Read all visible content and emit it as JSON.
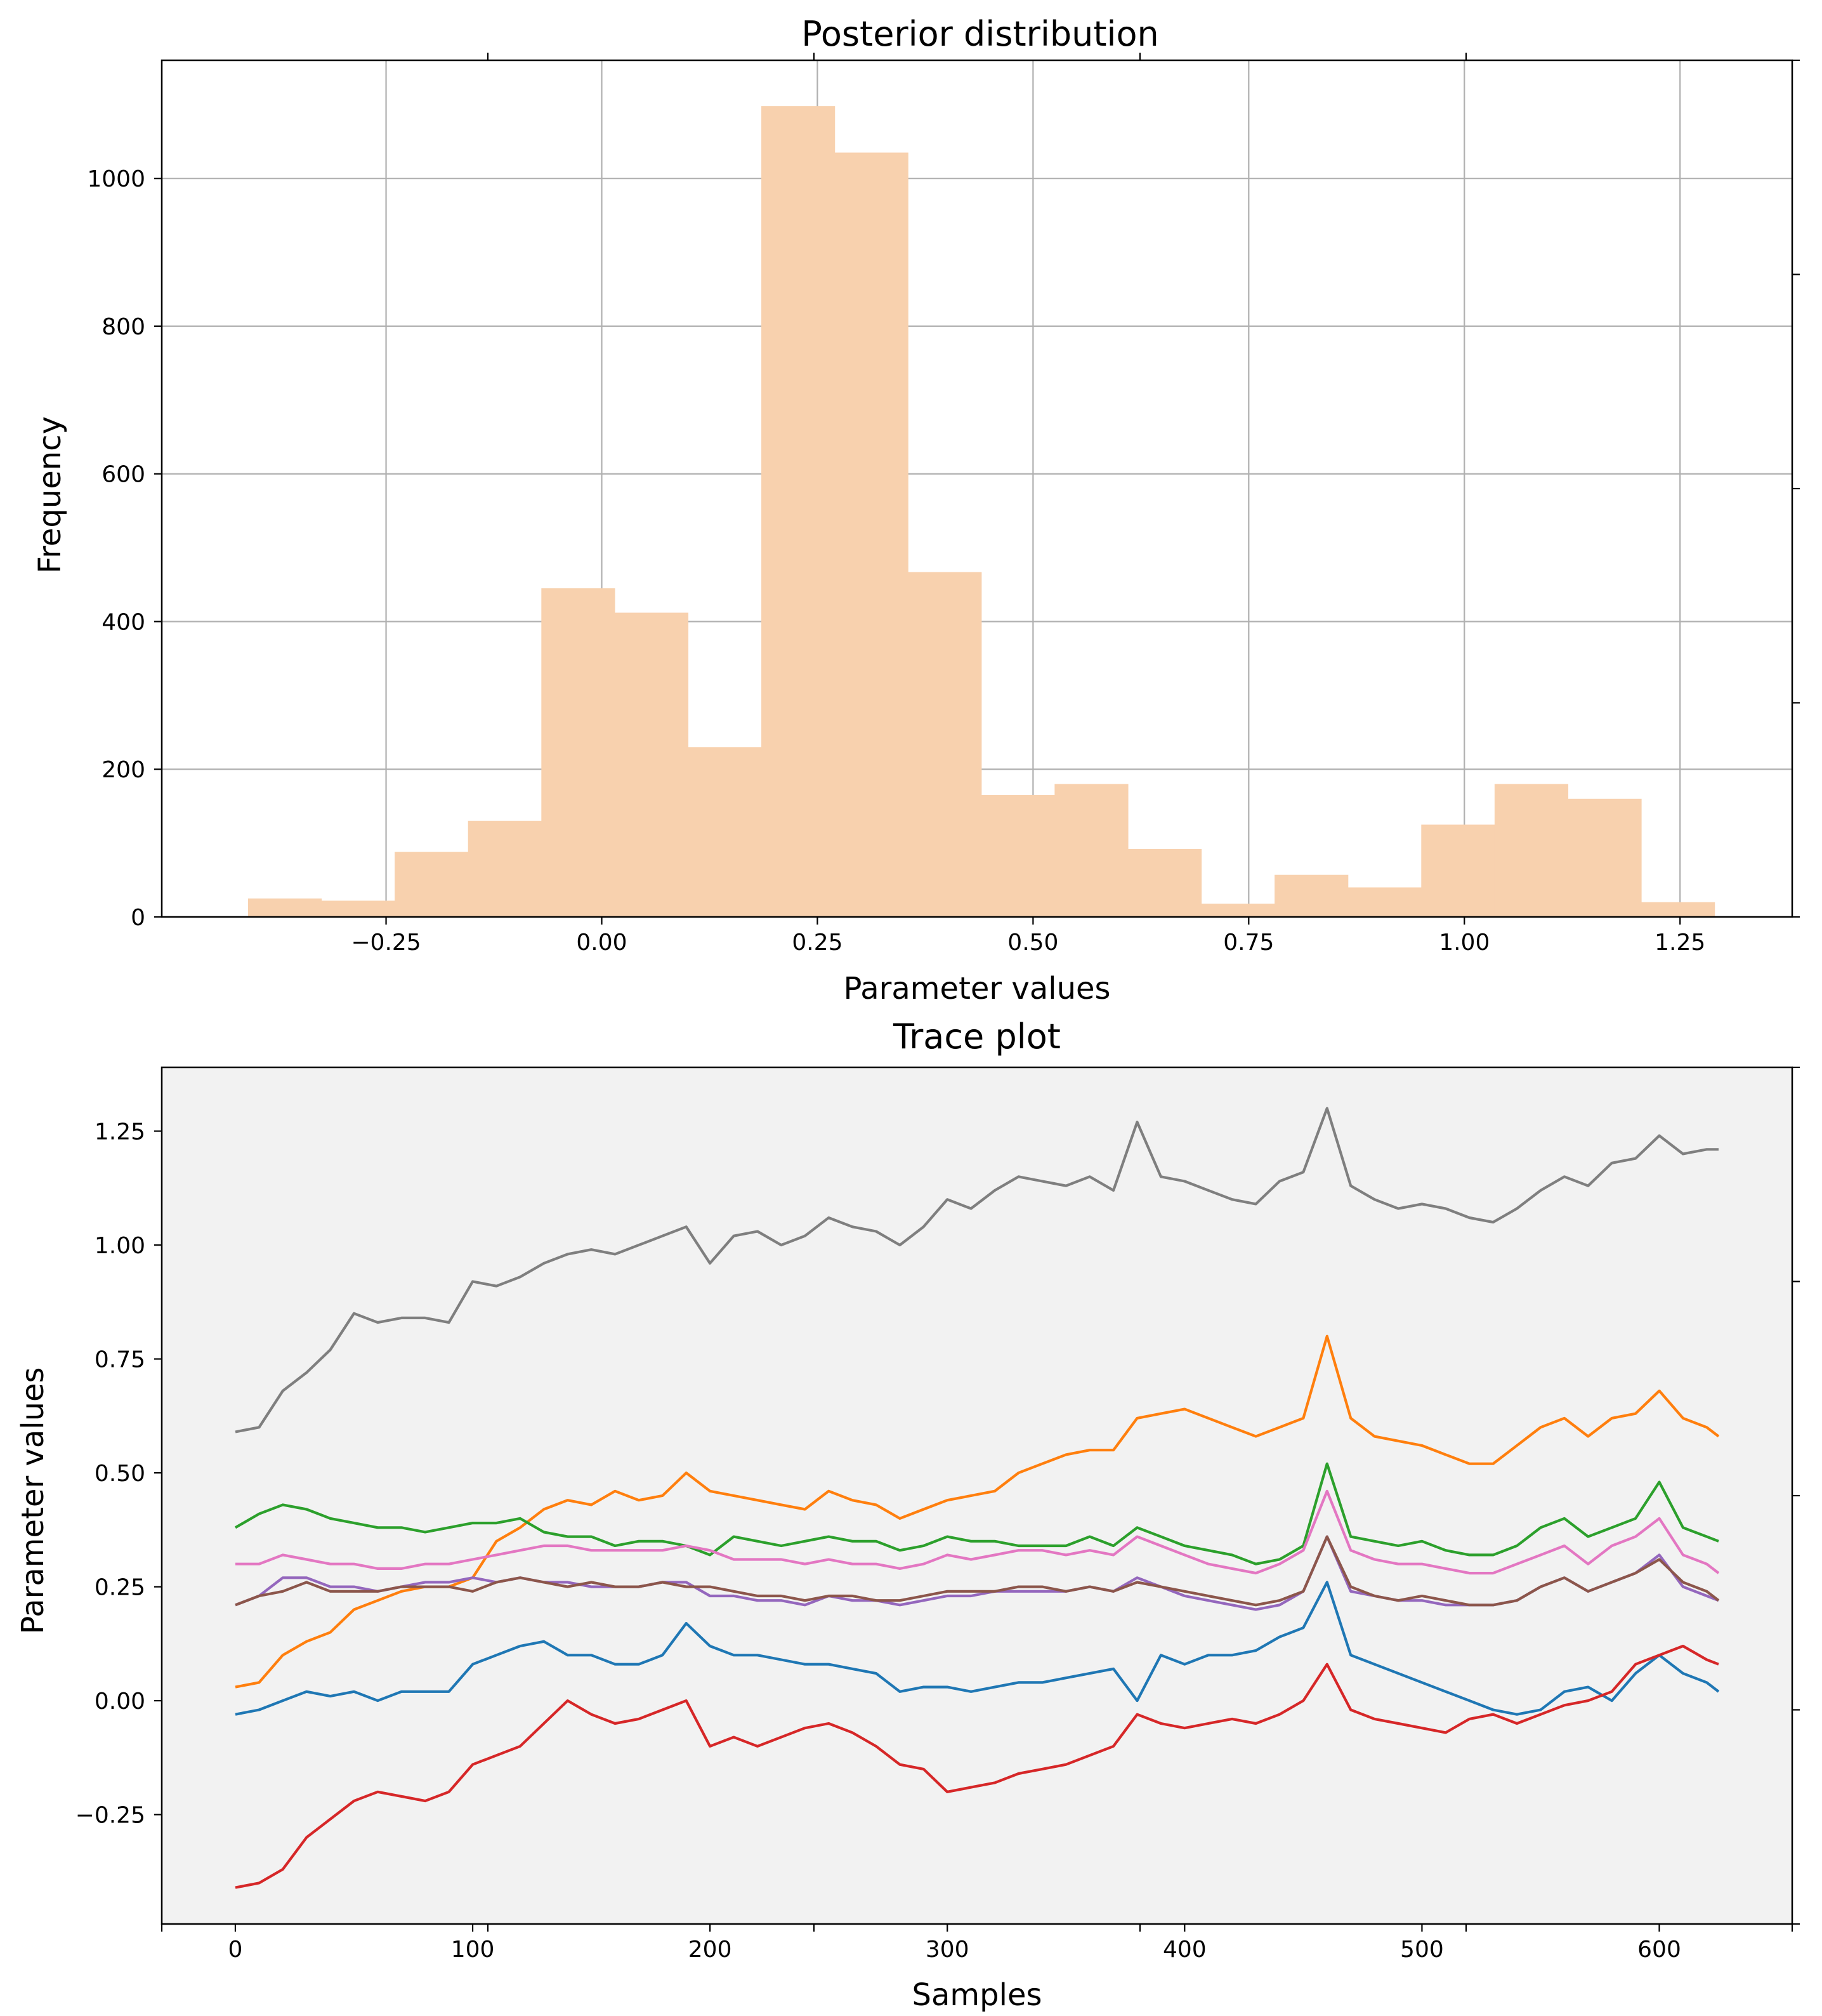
{
  "colors": {
    "hist_bar": "#f8d1ae",
    "grid": "#b0b0b0",
    "trace_background": "#f2f2f2",
    "axes": "#000000"
  },
  "chart_data": [
    {
      "type": "bar",
      "title": "Posterior distribution",
      "xlabel": "Parameter values",
      "ylabel": "Frequency",
      "grid": true,
      "xlim": [
        -0.51,
        1.38
      ],
      "ylim": [
        0,
        1160
      ],
      "x_ticks": [
        {
          "value": -0.25,
          "label": "−0.25"
        },
        {
          "value": 0.0,
          "label": "0.00"
        },
        {
          "value": 0.25,
          "label": "0.25"
        },
        {
          "value": 0.5,
          "label": "0.50"
        },
        {
          "value": 0.75,
          "label": "0.75"
        },
        {
          "value": 1.0,
          "label": "1.00"
        },
        {
          "value": 1.25,
          "label": "1.25"
        }
      ],
      "y_ticks": [
        {
          "value": 0,
          "label": "0"
        },
        {
          "value": 200,
          "label": "200"
        },
        {
          "value": 400,
          "label": "400"
        },
        {
          "value": 600,
          "label": "600"
        },
        {
          "value": 800,
          "label": "800"
        },
        {
          "value": 1000,
          "label": "1000"
        }
      ],
      "bin_edges": [
        -0.41,
        -0.325,
        -0.24,
        -0.155,
        -0.07,
        0.015,
        0.1,
        0.185,
        0.27,
        0.355,
        0.44,
        0.525,
        0.61,
        0.695,
        0.78,
        0.865,
        0.95,
        1.035,
        1.12,
        1.205,
        1.29
      ],
      "values": [
        25,
        22,
        88,
        130,
        445,
        412,
        230,
        1098,
        1035,
        467,
        165,
        180,
        92,
        18,
        57,
        40,
        125,
        180,
        160,
        20
      ]
    },
    {
      "type": "line",
      "title": "Trace plot",
      "xlabel": "Samples",
      "ylabel": "Parameter values",
      "grid": false,
      "xlim": [
        -31,
        656
      ],
      "ylim": [
        -0.49,
        1.39
      ],
      "x_ticks": [
        {
          "value": 0,
          "label": "0"
        },
        {
          "value": 100,
          "label": "100"
        },
        {
          "value": 200,
          "label": "200"
        },
        {
          "value": 300,
          "label": "300"
        },
        {
          "value": 400,
          "label": "400"
        },
        {
          "value": 500,
          "label": "500"
        },
        {
          "value": 600,
          "label": "600"
        }
      ],
      "y_ticks": [
        {
          "value": -0.25,
          "label": "−0.25"
        },
        {
          "value": 0.0,
          "label": "0.00"
        },
        {
          "value": 0.25,
          "label": "0.25"
        },
        {
          "value": 0.5,
          "label": "0.50"
        },
        {
          "value": 0.75,
          "label": "0.75"
        },
        {
          "value": 1.0,
          "label": "1.00"
        },
        {
          "value": 1.25,
          "label": "1.25"
        }
      ],
      "x": [
        0,
        10,
        20,
        30,
        40,
        50,
        60,
        70,
        80,
        90,
        100,
        110,
        120,
        130,
        140,
        150,
        160,
        170,
        180,
        190,
        200,
        210,
        220,
        230,
        240,
        250,
        260,
        270,
        280,
        290,
        300,
        310,
        320,
        330,
        340,
        350,
        360,
        370,
        380,
        390,
        400,
        410,
        420,
        430,
        440,
        450,
        460,
        470,
        480,
        490,
        500,
        510,
        520,
        530,
        540,
        550,
        560,
        570,
        580,
        590,
        600,
        610,
        620,
        625
      ],
      "series": [
        {
          "color": "#7f7f7f",
          "values": [
            0.59,
            0.6,
            0.68,
            0.72,
            0.77,
            0.85,
            0.83,
            0.84,
            0.84,
            0.83,
            0.92,
            0.91,
            0.93,
            0.96,
            0.98,
            0.99,
            0.98,
            1.0,
            1.02,
            1.04,
            0.96,
            1.02,
            1.03,
            1.0,
            1.02,
            1.06,
            1.04,
            1.03,
            1.0,
            1.04,
            1.1,
            1.08,
            1.12,
            1.15,
            1.14,
            1.13,
            1.15,
            1.12,
            1.27,
            1.15,
            1.14,
            1.12,
            1.1,
            1.09,
            1.14,
            1.16,
            1.3,
            1.13,
            1.1,
            1.08,
            1.09,
            1.08,
            1.06,
            1.05,
            1.08,
            1.12,
            1.15,
            1.13,
            1.18,
            1.19,
            1.24,
            1.2,
            1.21,
            1.21
          ]
        },
        {
          "color": "#ff7f0e",
          "values": [
            0.03,
            0.04,
            0.1,
            0.13,
            0.15,
            0.2,
            0.22,
            0.24,
            0.25,
            0.25,
            0.27,
            0.35,
            0.38,
            0.42,
            0.44,
            0.43,
            0.46,
            0.44,
            0.45,
            0.5,
            0.46,
            0.45,
            0.44,
            0.43,
            0.42,
            0.46,
            0.44,
            0.43,
            0.4,
            0.42,
            0.44,
            0.45,
            0.46,
            0.5,
            0.52,
            0.54,
            0.55,
            0.55,
            0.62,
            0.63,
            0.64,
            0.62,
            0.6,
            0.58,
            0.6,
            0.62,
            0.8,
            0.62,
            0.58,
            0.57,
            0.56,
            0.54,
            0.52,
            0.52,
            0.56,
            0.6,
            0.62,
            0.58,
            0.62,
            0.63,
            0.68,
            0.62,
            0.6,
            0.58
          ]
        },
        {
          "color": "#2ca02c",
          "values": [
            0.38,
            0.41,
            0.43,
            0.42,
            0.4,
            0.39,
            0.38,
            0.38,
            0.37,
            0.38,
            0.39,
            0.39,
            0.4,
            0.37,
            0.36,
            0.36,
            0.34,
            0.35,
            0.35,
            0.34,
            0.32,
            0.36,
            0.35,
            0.34,
            0.35,
            0.36,
            0.35,
            0.35,
            0.33,
            0.34,
            0.36,
            0.35,
            0.35,
            0.34,
            0.34,
            0.34,
            0.36,
            0.34,
            0.38,
            0.36,
            0.34,
            0.33,
            0.32,
            0.3,
            0.31,
            0.34,
            0.52,
            0.36,
            0.35,
            0.34,
            0.35,
            0.33,
            0.32,
            0.32,
            0.34,
            0.38,
            0.4,
            0.36,
            0.38,
            0.4,
            0.48,
            0.38,
            0.36,
            0.35
          ]
        },
        {
          "color": "#e377c2",
          "values": [
            0.3,
            0.3,
            0.32,
            0.31,
            0.3,
            0.3,
            0.29,
            0.29,
            0.3,
            0.3,
            0.31,
            0.32,
            0.33,
            0.34,
            0.34,
            0.33,
            0.33,
            0.33,
            0.33,
            0.34,
            0.33,
            0.31,
            0.31,
            0.31,
            0.3,
            0.31,
            0.3,
            0.3,
            0.29,
            0.3,
            0.32,
            0.31,
            0.32,
            0.33,
            0.33,
            0.32,
            0.33,
            0.32,
            0.36,
            0.34,
            0.32,
            0.3,
            0.29,
            0.28,
            0.3,
            0.33,
            0.46,
            0.33,
            0.31,
            0.3,
            0.3,
            0.29,
            0.28,
            0.28,
            0.3,
            0.32,
            0.34,
            0.3,
            0.34,
            0.36,
            0.4,
            0.32,
            0.3,
            0.28
          ]
        },
        {
          "color": "#9467bd",
          "values": [
            0.21,
            0.23,
            0.27,
            0.27,
            0.25,
            0.25,
            0.24,
            0.25,
            0.26,
            0.26,
            0.27,
            0.26,
            0.27,
            0.26,
            0.26,
            0.25,
            0.25,
            0.25,
            0.26,
            0.26,
            0.23,
            0.23,
            0.22,
            0.22,
            0.21,
            0.23,
            0.22,
            0.22,
            0.21,
            0.22,
            0.23,
            0.23,
            0.24,
            0.24,
            0.24,
            0.24,
            0.25,
            0.24,
            0.27,
            0.25,
            0.23,
            0.22,
            0.21,
            0.2,
            0.21,
            0.24,
            0.36,
            0.24,
            0.23,
            0.22,
            0.22,
            0.21,
            0.21,
            0.21,
            0.22,
            0.25,
            0.27,
            0.24,
            0.26,
            0.28,
            0.32,
            0.25,
            0.23,
            0.22
          ]
        },
        {
          "color": "#8c564b",
          "values": [
            0.21,
            0.23,
            0.24,
            0.26,
            0.24,
            0.24,
            0.24,
            0.25,
            0.25,
            0.25,
            0.24,
            0.26,
            0.27,
            0.26,
            0.25,
            0.26,
            0.25,
            0.25,
            0.26,
            0.25,
            0.25,
            0.24,
            0.23,
            0.23,
            0.22,
            0.23,
            0.23,
            0.22,
            0.22,
            0.23,
            0.24,
            0.24,
            0.24,
            0.25,
            0.25,
            0.24,
            0.25,
            0.24,
            0.26,
            0.25,
            0.24,
            0.23,
            0.22,
            0.21,
            0.22,
            0.24,
            0.36,
            0.25,
            0.23,
            0.22,
            0.23,
            0.22,
            0.21,
            0.21,
            0.22,
            0.25,
            0.27,
            0.24,
            0.26,
            0.28,
            0.31,
            0.26,
            0.24,
            0.22
          ]
        },
        {
          "color": "#1f77b4",
          "values": [
            -0.03,
            -0.02,
            0.0,
            0.02,
            0.01,
            0.02,
            0.0,
            0.02,
            0.02,
            0.02,
            0.08,
            0.1,
            0.12,
            0.13,
            0.1,
            0.1,
            0.08,
            0.08,
            0.1,
            0.17,
            0.12,
            0.1,
            0.1,
            0.09,
            0.08,
            0.08,
            0.07,
            0.06,
            0.02,
            0.03,
            0.03,
            0.02,
            0.03,
            0.04,
            0.04,
            0.05,
            0.06,
            0.07,
            0.0,
            0.1,
            0.08,
            0.1,
            0.1,
            0.11,
            0.14,
            0.16,
            0.26,
            0.1,
            0.08,
            0.06,
            0.04,
            0.02,
            0.0,
            -0.02,
            -0.03,
            -0.02,
            0.02,
            0.03,
            0.0,
            0.06,
            0.1,
            0.06,
            0.04,
            0.02
          ]
        },
        {
          "color": "#d62728",
          "values": [
            -0.41,
            -0.4,
            -0.37,
            -0.3,
            -0.26,
            -0.22,
            -0.2,
            -0.21,
            -0.22,
            -0.2,
            -0.14,
            -0.12,
            -0.1,
            -0.05,
            0.0,
            -0.03,
            -0.05,
            -0.04,
            -0.02,
            0.0,
            -0.1,
            -0.08,
            -0.1,
            -0.08,
            -0.06,
            -0.05,
            -0.07,
            -0.1,
            -0.14,
            -0.15,
            -0.2,
            -0.19,
            -0.18,
            -0.16,
            -0.15,
            -0.14,
            -0.12,
            -0.1,
            -0.03,
            -0.05,
            -0.06,
            -0.05,
            -0.04,
            -0.05,
            -0.03,
            0.0,
            0.08,
            -0.02,
            -0.04,
            -0.05,
            -0.06,
            -0.07,
            -0.04,
            -0.03,
            -0.05,
            -0.03,
            -0.01,
            0.0,
            0.02,
            0.08,
            0.1,
            0.12,
            0.09,
            0.08
          ]
        }
      ]
    }
  ]
}
